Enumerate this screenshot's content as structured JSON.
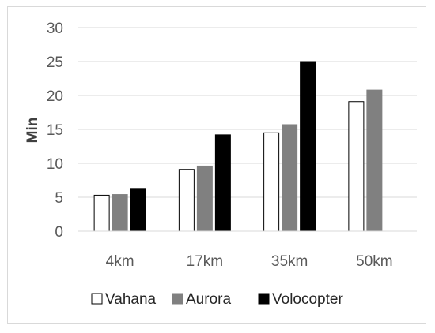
{
  "chart_data": {
    "type": "bar",
    "categories": [
      "4km",
      "17km",
      "35km",
      "50km"
    ],
    "series": [
      {
        "name": "Vahana",
        "values": [
          5.3,
          9.1,
          14.5,
          19.1
        ],
        "color": "#ffffff",
        "stroke": "#000000"
      },
      {
        "name": "Aurora",
        "values": [
          5.4,
          9.6,
          15.7,
          20.8
        ],
        "color": "#808080",
        "stroke": "#808080"
      },
      {
        "name": "Volocopter",
        "values": [
          6.3,
          14.2,
          25.0,
          null
        ],
        "color": "#000000",
        "stroke": "#000000"
      }
    ],
    "title": "",
    "xlabel": "",
    "ylabel": "Min",
    "ylim": [
      0,
      30
    ],
    "yticks": [
      0,
      5,
      10,
      15,
      20,
      25,
      30
    ],
    "grid": true,
    "legend_position": "bottom"
  }
}
